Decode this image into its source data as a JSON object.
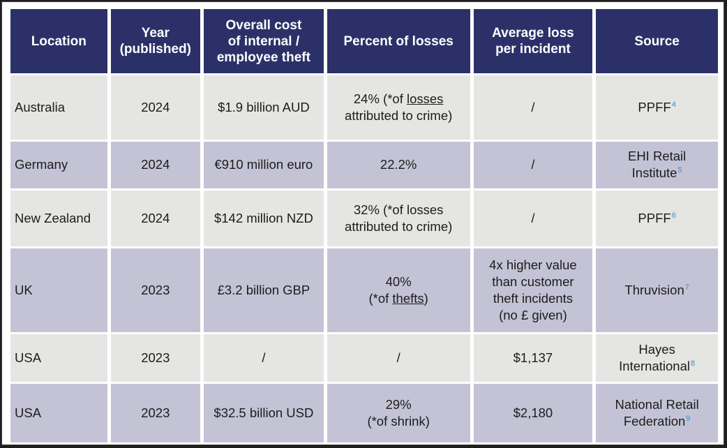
{
  "headers": {
    "location": "Location",
    "year_line1": "Year",
    "year_line2": "(published)",
    "cost_line1": "Overall cost",
    "cost_line2": "of internal /",
    "cost_line3": "employee theft",
    "percent": "Percent of losses",
    "avg_line1": "Average loss",
    "avg_line2": "per incident",
    "source": "Source"
  },
  "rows": [
    {
      "location": "Australia",
      "year": "2024",
      "cost": "$1.9 billion AUD",
      "percent_pre": "24% (*of ",
      "percent_ul": "losses",
      "percent_line2": "attributed to crime)",
      "avg": "/",
      "source_line1": "PPFF",
      "source_fn": "4"
    },
    {
      "location": "Germany",
      "year": "2024",
      "cost": "€910 million euro",
      "percent": "22.2%",
      "avg": "/",
      "source_line1": "EHI Retail",
      "source_line2": "Institute",
      "source_fn": "5"
    },
    {
      "location": "New Zealand",
      "year": "2024",
      "cost": "$142 million NZD",
      "percent_line1": "32% (*of losses",
      "percent_line2": "attributed to crime)",
      "avg": "/",
      "source_line1": "PPFF",
      "source_fn": "6"
    },
    {
      "location": "UK",
      "year": "2023",
      "cost": "£3.2 billion GBP",
      "percent_line1": "40%",
      "percent_pre2": "(*of ",
      "percent_ul": "thefts",
      "percent_post2": ")",
      "avg_line1": "4x higher value",
      "avg_line2": "than customer",
      "avg_line3": "theft incidents",
      "avg_line4": "(no £ given)",
      "source_line1": "Thruvision",
      "source_fn": "7"
    },
    {
      "location": "USA",
      "year": "2023",
      "cost": "/",
      "percent": "/",
      "avg": "$1,137",
      "source_line1": "Hayes",
      "source_line2": "International",
      "source_fn": "8"
    },
    {
      "location": "USA",
      "year": "2023",
      "cost": "$32.5 billion USD",
      "percent_line1": "29%",
      "percent_line2": "(*of shrink)",
      "avg": "$2,180",
      "source_line1": "National Retail",
      "source_line2": "Federation",
      "source_fn": "9"
    }
  ],
  "colors": {
    "header_bg": "#2b3168",
    "row_light": "#e5e5e3",
    "row_purple": "#c4c3d6",
    "footnote": "#3b8fd0"
  }
}
